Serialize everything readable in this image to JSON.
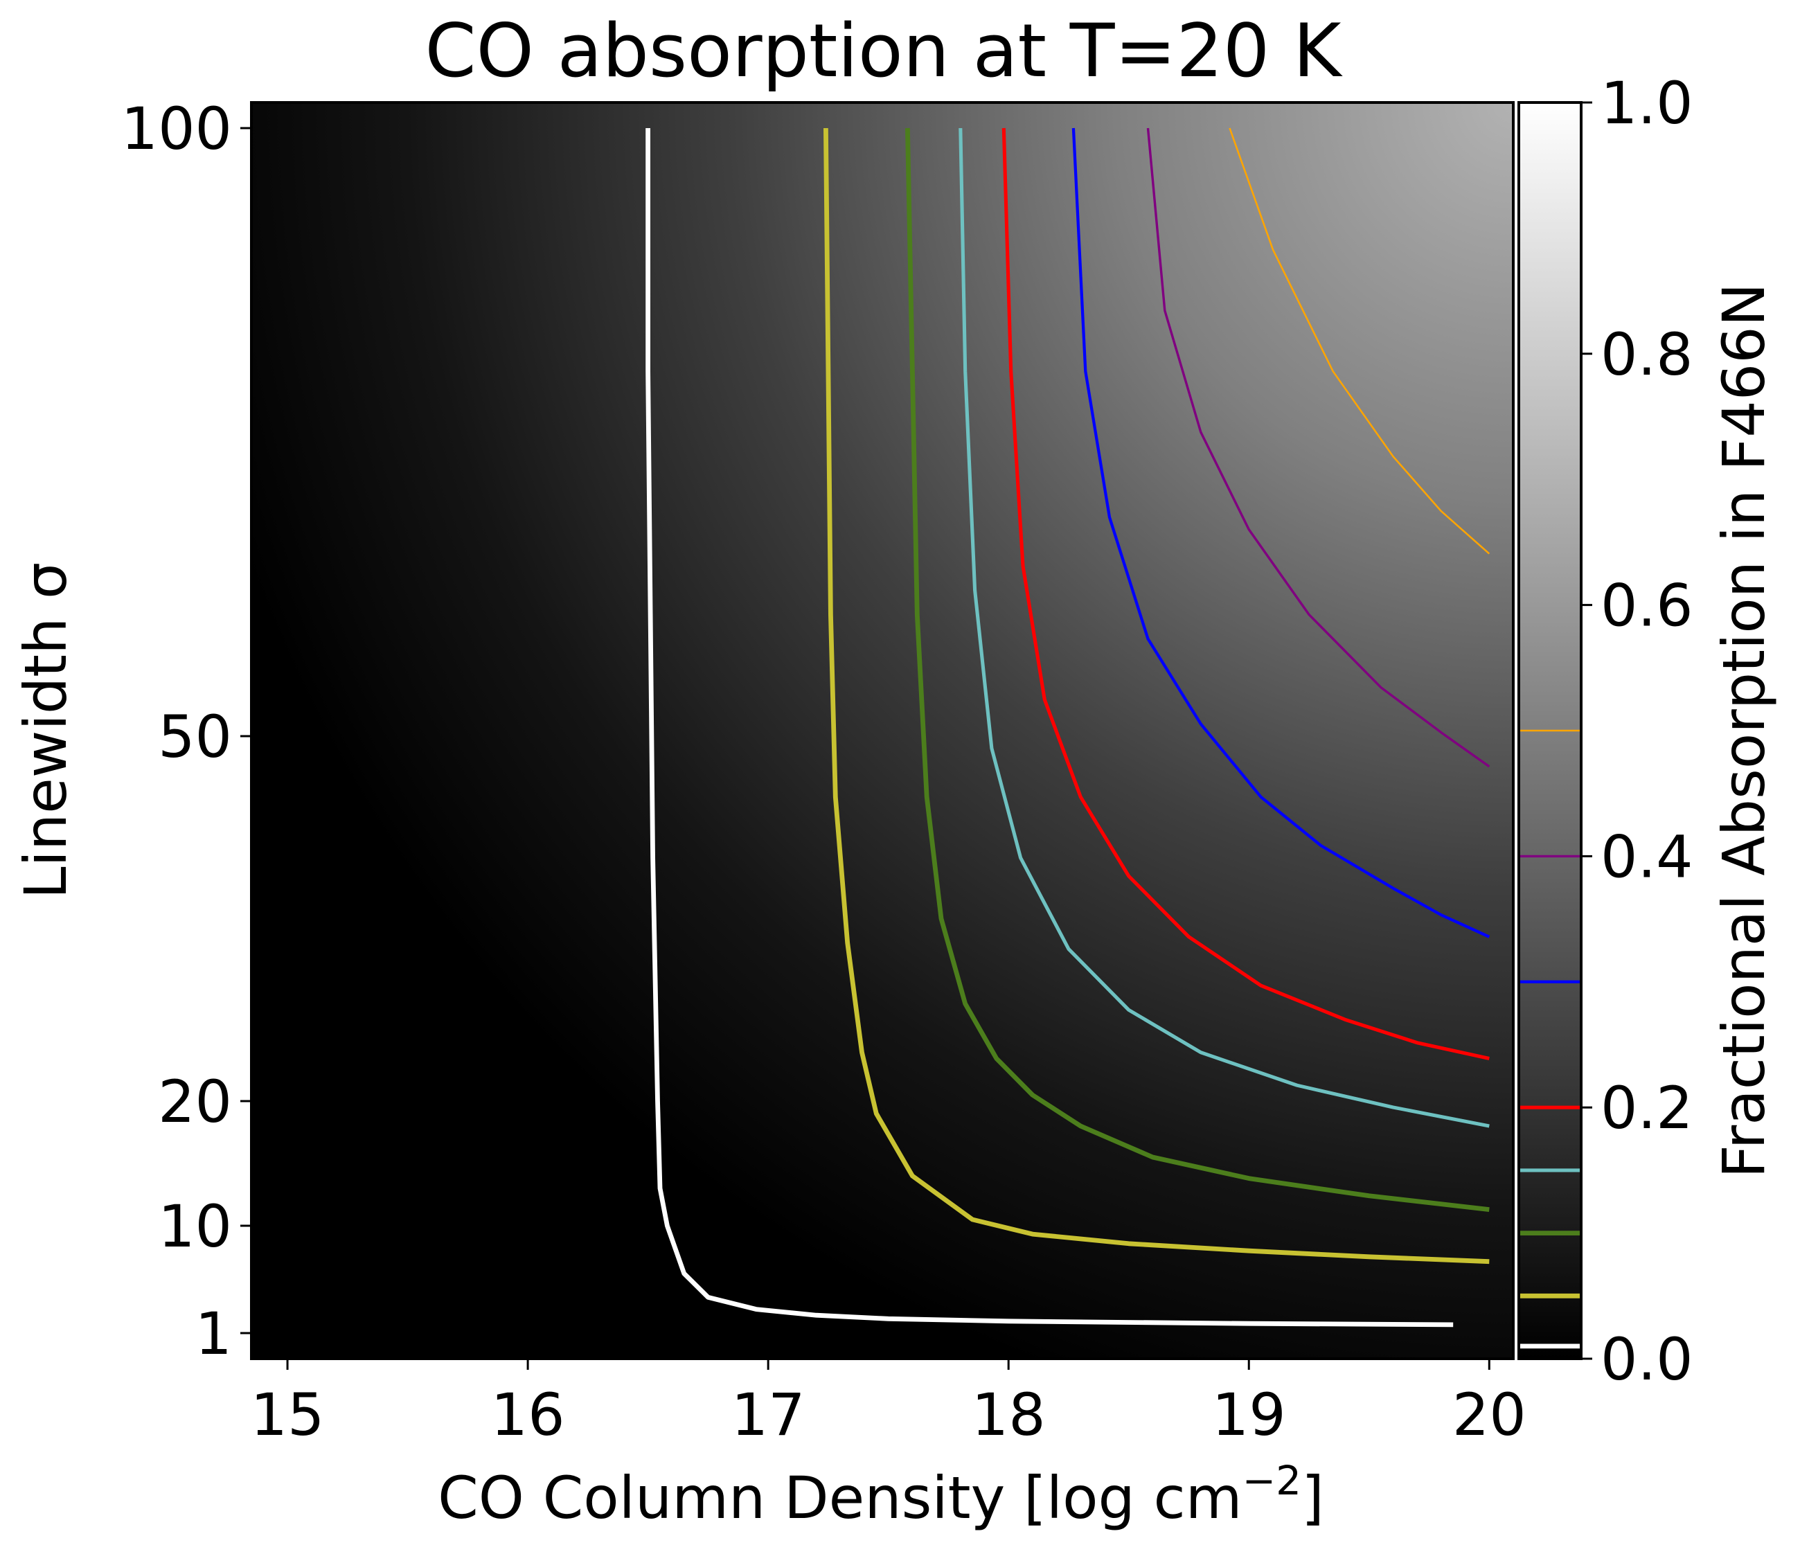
{
  "chart_data": {
    "type": "heatmap",
    "title": "CO absorption at T=20 K",
    "xlabel": "CO Column Density [log cm",
    "xlabel_sup": "−2",
    "xlabel_end": "]",
    "ylabel": "Linewidth σ",
    "colorbar_label": "Fractional Absorption in F466N",
    "xlim": [
      14.85,
      20.1
    ],
    "x_ticks": [
      15,
      16,
      17,
      18,
      19,
      20
    ],
    "y_ticks": [
      {
        "label": "100",
        "value": 100
      },
      {
        "label": "50",
        "value": 50
      },
      {
        "label": "20",
        "value": 20
      },
      {
        "label": "10",
        "value": 10
      },
      {
        "label": "1",
        "value": 1
      }
    ],
    "y_axis_note": "non-linear axis as printed (100, 50, 20, 10, 1)",
    "colorbar": {
      "cmap": "gray",
      "range": [
        0.0,
        1.0
      ],
      "ticks": [
        "0.0",
        "0.2",
        "0.4",
        "0.6",
        "0.8",
        "1.0"
      ],
      "tick_values": [
        0.0,
        0.2,
        0.4,
        0.6,
        0.8,
        1.0
      ]
    },
    "contours": [
      {
        "level": 0.01,
        "color": "#ffffff",
        "width": 4,
        "points": [
          [
            16.5,
            100
          ],
          [
            16.5,
            80
          ],
          [
            16.51,
            60
          ],
          [
            16.52,
            40
          ],
          [
            16.54,
            20
          ],
          [
            16.55,
            13
          ],
          [
            16.58,
            10
          ],
          [
            16.65,
            6
          ],
          [
            16.75,
            4
          ],
          [
            16.95,
            3
          ],
          [
            17.2,
            2.5
          ],
          [
            17.5,
            2.2
          ],
          [
            18,
            2
          ],
          [
            19,
            1.8
          ],
          [
            19.85,
            1.7
          ]
        ]
      },
      {
        "level": 0.05,
        "color": "#c8c232",
        "width": 4,
        "points": [
          [
            17.24,
            100
          ],
          [
            17.25,
            80
          ],
          [
            17.26,
            60
          ],
          [
            17.28,
            45
          ],
          [
            17.33,
            33
          ],
          [
            17.39,
            24
          ],
          [
            17.45,
            19
          ],
          [
            17.6,
            14
          ],
          [
            17.85,
            10.5
          ],
          [
            18.1,
            9.3
          ],
          [
            18.5,
            8.5
          ],
          [
            19,
            7.9
          ],
          [
            19.5,
            7.4
          ],
          [
            20,
            7.0
          ]
        ]
      },
      {
        "level": 0.1,
        "color": "#4c7e1c",
        "width": 4,
        "points": [
          [
            17.58,
            100
          ],
          [
            17.6,
            80
          ],
          [
            17.62,
            60
          ],
          [
            17.66,
            45
          ],
          [
            17.72,
            35
          ],
          [
            17.82,
            28
          ],
          [
            17.95,
            23.5
          ],
          [
            18.1,
            20.5
          ],
          [
            18.3,
            18
          ],
          [
            18.6,
            15.5
          ],
          [
            19,
            13.8
          ],
          [
            19.5,
            12.4
          ],
          [
            20,
            11.3
          ]
        ]
      },
      {
        "level": 0.15,
        "color": "#6ec1c1",
        "width": 3,
        "points": [
          [
            17.8,
            100
          ],
          [
            17.82,
            80
          ],
          [
            17.86,
            62
          ],
          [
            17.93,
            49
          ],
          [
            18.05,
            40
          ],
          [
            18.25,
            32.5
          ],
          [
            18.5,
            27.5
          ],
          [
            18.8,
            24
          ],
          [
            19.2,
            21.3
          ],
          [
            19.6,
            19.5
          ],
          [
            20,
            18.0
          ]
        ]
      },
      {
        "level": 0.2,
        "color": "#ff0000",
        "width": 3,
        "points": [
          [
            17.98,
            100
          ],
          [
            18.01,
            80
          ],
          [
            18.06,
            64
          ],
          [
            18.15,
            53
          ],
          [
            18.3,
            45
          ],
          [
            18.5,
            38.5
          ],
          [
            18.75,
            33.5
          ],
          [
            19.05,
            29.5
          ],
          [
            19.4,
            26.7
          ],
          [
            19.7,
            24.8
          ],
          [
            20,
            23.5
          ]
        ]
      },
      {
        "level": 0.3,
        "color": "#0000ff",
        "width": 2.5,
        "points": [
          [
            18.27,
            100
          ],
          [
            18.32,
            80
          ],
          [
            18.42,
            68
          ],
          [
            18.58,
            58
          ],
          [
            18.8,
            51
          ],
          [
            19.05,
            45
          ],
          [
            19.3,
            41
          ],
          [
            19.6,
            37.5
          ],
          [
            19.8,
            35.3
          ],
          [
            20,
            33.5
          ]
        ]
      },
      {
        "level": 0.4,
        "color": "#800080",
        "width": 2,
        "points": [
          [
            18.58,
            100
          ],
          [
            18.65,
            85
          ],
          [
            18.8,
            75
          ],
          [
            19,
            67
          ],
          [
            19.25,
            60
          ],
          [
            19.55,
            54
          ],
          [
            19.8,
            50.3
          ],
          [
            20,
            47.5
          ]
        ]
      },
      {
        "level": 0.5,
        "color": "#ffa500",
        "width": 1.5,
        "points": [
          [
            18.92,
            100
          ],
          [
            19.1,
            90
          ],
          [
            19.35,
            80
          ],
          [
            19.6,
            73
          ],
          [
            19.8,
            68.5
          ],
          [
            20,
            65
          ]
        ]
      }
    ]
  }
}
